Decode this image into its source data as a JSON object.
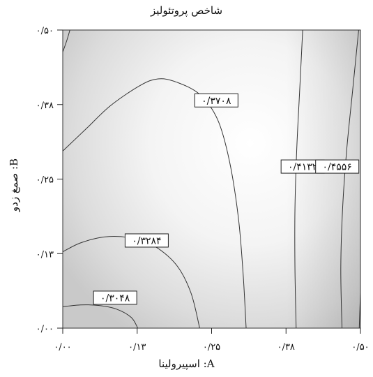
{
  "chart_data": {
    "type": "contour",
    "title": "شاخص پروتئولیز",
    "xlabel": "A: اسپیرولینا",
    "ylabel": "B: صمغ زدو",
    "xlim": [
      0.0,
      0.5
    ],
    "ylim": [
      0.0,
      0.5
    ],
    "x_ticks": [
      {
        "value": 0.0,
        "label": "۰/۰۰"
      },
      {
        "value": 0.125,
        "label": "۰/۱۳"
      },
      {
        "value": 0.25,
        "label": "۰/۲۵"
      },
      {
        "value": 0.375,
        "label": "۰/۳۸"
      },
      {
        "value": 0.5,
        "label": "۰/۵۰"
      }
    ],
    "y_ticks": [
      {
        "value": 0.0,
        "label": "۰/۰۰"
      },
      {
        "value": 0.125,
        "label": "۰/۱۳"
      },
      {
        "value": 0.25,
        "label": "۰/۲۵"
      },
      {
        "value": 0.375,
        "label": "۰/۳۸"
      },
      {
        "value": 0.5,
        "label": "۰/۵۰"
      }
    ],
    "contours": [
      {
        "level": 0.3048,
        "label": "۰/۳۰۴۸",
        "label_at": [
          0.088,
          0.051
        ],
        "points": [
          [
            0.0,
            0.036
          ],
          [
            0.03,
            0.039
          ],
          [
            0.06,
            0.038
          ],
          [
            0.09,
            0.032
          ],
          [
            0.115,
            0.018
          ],
          [
            0.126,
            0.0
          ]
        ]
      },
      {
        "level": 0.3284,
        "label": "۰/۳۲۸۴",
        "label_at": [
          0.141,
          0.147
        ],
        "points": [
          [
            0.0,
            0.128
          ],
          [
            0.03,
            0.143
          ],
          [
            0.07,
            0.153
          ],
          [
            0.11,
            0.152
          ],
          [
            0.15,
            0.14
          ],
          [
            0.19,
            0.107
          ],
          [
            0.215,
            0.06
          ],
          [
            0.23,
            0.0
          ]
        ]
      },
      {
        "level": 0.3708,
        "label": "۰/۳۷۰۸",
        "label_at": [
          0.258,
          0.382
        ],
        "points": [
          [
            0.0,
            0.297
          ],
          [
            0.04,
            0.335
          ],
          [
            0.08,
            0.373
          ],
          [
            0.13,
            0.407
          ],
          [
            0.16,
            0.418
          ],
          [
            0.19,
            0.413
          ],
          [
            0.23,
            0.392
          ],
          [
            0.26,
            0.35
          ],
          [
            0.28,
            0.28
          ],
          [
            0.295,
            0.185
          ],
          [
            0.303,
            0.09
          ],
          [
            0.308,
            0.0
          ]
        ]
      },
      {
        "level": 0.4132,
        "label": "۰/۴۱۳۲",
        "label_at": [
          0.403,
          0.271
        ],
        "points": [
          [
            0.403,
            0.5
          ],
          [
            0.398,
            0.4
          ],
          [
            0.393,
            0.3
          ],
          [
            0.39,
            0.2
          ],
          [
            0.39,
            0.1
          ],
          [
            0.392,
            0.0
          ]
        ]
      },
      {
        "level": 0.4556,
        "label": "۰/۴۵۵۶",
        "label_at": [
          0.461,
          0.271
        ],
        "points": [
          [
            0.497,
            0.5
          ],
          [
            0.487,
            0.4
          ],
          [
            0.477,
            0.3
          ],
          [
            0.47,
            0.2
          ],
          [
            0.467,
            0.1
          ],
          [
            0.469,
            0.0
          ]
        ]
      },
      {
        "level": 0.4556,
        "label": "",
        "label_at": null,
        "points": [
          [
            0.0,
            0.463
          ],
          [
            0.007,
            0.483
          ],
          [
            0.012,
            0.5
          ]
        ]
      },
      {
        "level": 0.4556,
        "label": "",
        "label_at": null,
        "points": [
          [
            0.498,
            0.0
          ],
          [
            0.5,
            0.06
          ]
        ]
      }
    ],
    "grid": false,
    "legend": "none"
  }
}
